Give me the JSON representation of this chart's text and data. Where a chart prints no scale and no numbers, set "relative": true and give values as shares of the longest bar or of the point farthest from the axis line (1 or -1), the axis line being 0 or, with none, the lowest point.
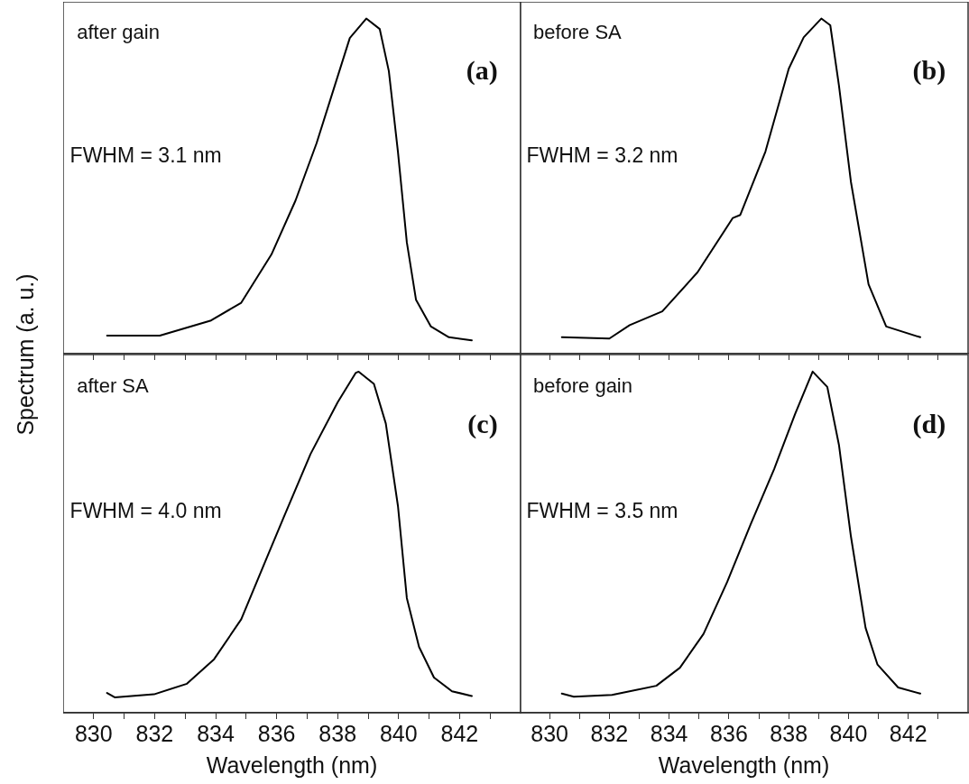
{
  "chart_data": [
    {
      "type": "line",
      "relative": true,
      "ylabel": "Spectrum (a. u.)",
      "annotations": [
        "after gain",
        "FWHM = 3.1 nm",
        "(a)"
      ],
      "xlim": [
        829,
        844
      ],
      "xticks": [
        830,
        {
          "value": 831,
          "label": null
        },
        832,
        {
          "value": 833,
          "label": null
        },
        834,
        {
          "value": 835,
          "label": null
        },
        836,
        {
          "value": 837,
          "label": null
        },
        838,
        {
          "value": 839,
          "label": null
        },
        840,
        {
          "value": 841,
          "label": null
        },
        842,
        {
          "value": 843,
          "label": null
        }
      ],
      "tick_labels": false,
      "grid": false,
      "legend": false,
      "marker": "none",
      "series": [
        {
          "color": "#000000",
          "x": [
            830.44,
            832.17,
            833.85,
            834.84,
            835.83,
            836.62,
            837.31,
            837.9,
            838.4,
            838.94,
            839.38,
            839.68,
            839.98,
            840.27,
            840.57,
            841.06,
            841.65,
            842.4
          ],
          "values": [
            0.054,
            0.054,
            0.099,
            0.152,
            0.296,
            0.457,
            0.628,
            0.798,
            0.942,
            1.0,
            0.969,
            0.843,
            0.601,
            0.332,
            0.161,
            0.081,
            0.049,
            0.04
          ]
        }
      ]
    },
    {
      "type": "line",
      "relative": true,
      "annotations": [
        "before SA",
        "FWHM = 3.2 nm",
        "(b)"
      ],
      "xlim": [
        829,
        844
      ],
      "xticks": [
        830,
        {
          "value": 831,
          "label": null
        },
        832,
        {
          "value": 833,
          "label": null
        },
        834,
        {
          "value": 835,
          "label": null
        },
        836,
        {
          "value": 837,
          "label": null
        },
        838,
        {
          "value": 839,
          "label": null
        },
        840,
        {
          "value": 841,
          "label": null
        },
        842,
        {
          "value": 843,
          "label": null
        }
      ],
      "tick_labels": false,
      "grid": false,
      "legend": false,
      "marker": "none",
      "series": [
        {
          "color": "#000000",
          "x": [
            830.41,
            832.0,
            832.68,
            833.77,
            834.95,
            836.13,
            836.38,
            837.22,
            838.0,
            838.5,
            839.09,
            839.39,
            839.68,
            840.08,
            840.67,
            841.26,
            842.4
          ],
          "values": [
            0.049,
            0.045,
            0.085,
            0.126,
            0.243,
            0.405,
            0.414,
            0.603,
            0.85,
            0.944,
            1.0,
            0.98,
            0.8,
            0.513,
            0.207,
            0.081,
            0.049
          ]
        }
      ]
    },
    {
      "type": "line",
      "relative": true,
      "xlabel": "Wavelength (nm)",
      "annotations": [
        "after SA",
        "FWHM = 4.0 nm",
        "(c)"
      ],
      "xlim": [
        829,
        844
      ],
      "xticks": [
        830,
        {
          "value": 831,
          "label": null
        },
        832,
        {
          "value": 833,
          "label": null
        },
        834,
        {
          "value": 835,
          "label": null
        },
        836,
        {
          "value": 837,
          "label": null
        },
        838,
        {
          "value": 839,
          "label": null
        },
        840,
        {
          "value": 841,
          "label": null
        },
        842,
        {
          "value": 843,
          "label": null
        }
      ],
      "tick_labels": "x",
      "grid": false,
      "legend": false,
      "marker": "none",
      "series": [
        {
          "color": "#000000",
          "x": [
            830.44,
            830.69,
            831.98,
            833.06,
            833.95,
            834.84,
            835.63,
            836.22,
            837.11,
            838.0,
            838.59,
            838.69,
            839.19,
            839.58,
            839.98,
            840.27,
            840.67,
            841.16,
            841.75,
            842.4
          ],
          "values": [
            0.058,
            0.045,
            0.054,
            0.085,
            0.157,
            0.274,
            0.444,
            0.57,
            0.758,
            0.91,
            0.996,
            1.0,
            0.964,
            0.848,
            0.605,
            0.336,
            0.193,
            0.103,
            0.063,
            0.049
          ]
        }
      ]
    },
    {
      "type": "line",
      "relative": true,
      "xlabel": "Wavelength (nm)",
      "annotations": [
        "before gain",
        "FWHM = 3.5 nm",
        "(d)"
      ],
      "xlim": [
        829,
        844
      ],
      "xticks": [
        830,
        {
          "value": 831,
          "label": null
        },
        832,
        {
          "value": 833,
          "label": null
        },
        834,
        {
          "value": 835,
          "label": null
        },
        836,
        {
          "value": 837,
          "label": null
        },
        838,
        {
          "value": 839,
          "label": null
        },
        840,
        {
          "value": 841,
          "label": null
        },
        842,
        {
          "value": 843,
          "label": null
        }
      ],
      "tick_labels": "x",
      "grid": false,
      "legend": false,
      "marker": "none",
      "series": [
        {
          "color": "#000000",
          "x": [
            830.41,
            830.81,
            832.09,
            833.57,
            834.36,
            835.15,
            835.94,
            836.73,
            837.51,
            838.21,
            838.8,
            839.29,
            839.68,
            840.08,
            840.57,
            840.97,
            841.66,
            842.4
          ],
          "values": [
            0.056,
            0.047,
            0.052,
            0.079,
            0.132,
            0.231,
            0.383,
            0.553,
            0.714,
            0.875,
            1.0,
            0.955,
            0.785,
            0.517,
            0.249,
            0.141,
            0.074,
            0.056
          ]
        }
      ]
    }
  ]
}
